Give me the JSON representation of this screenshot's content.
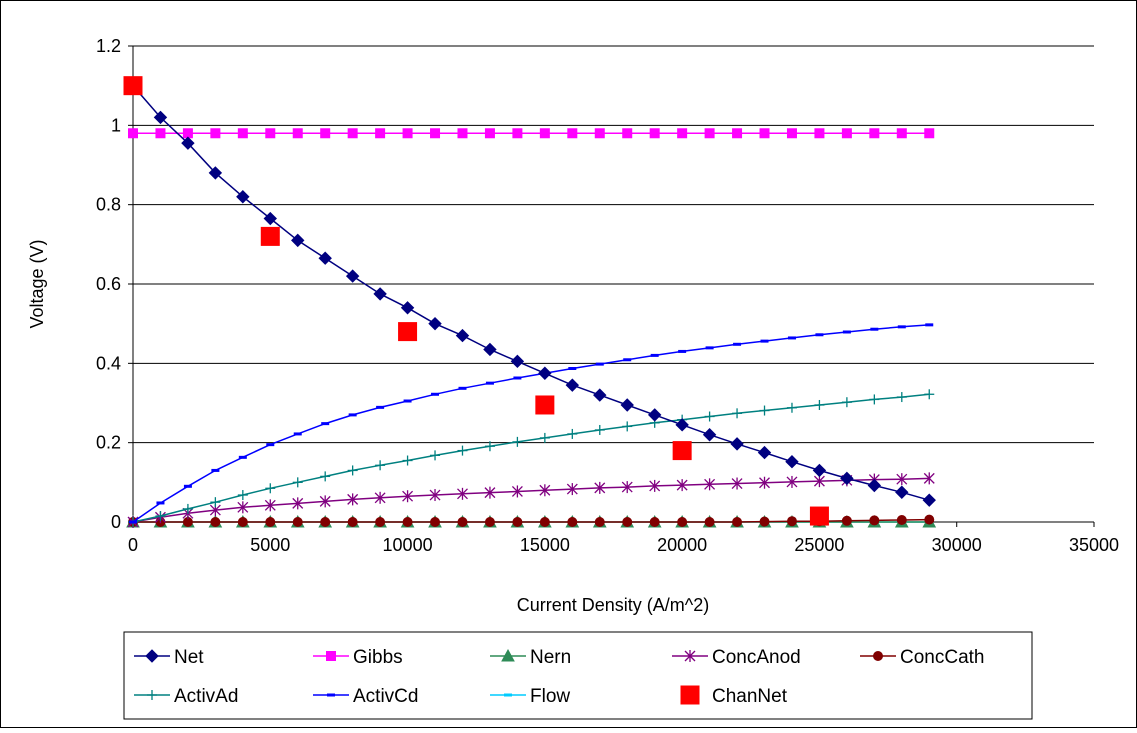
{
  "chart_data": {
    "type": "line",
    "title": "",
    "xlabel": "Current Density (A/m^2)",
    "ylabel": "Voltage (V)",
    "xlim": [
      0,
      35000
    ],
    "ylim": [
      0,
      1.2
    ],
    "x_ticks": [
      "0",
      "5000",
      "10000",
      "15000",
      "20000",
      "25000",
      "30000",
      "35000"
    ],
    "y_ticks": [
      "0",
      "0.2",
      "0.4",
      "0.6",
      "0.8",
      "1",
      "1.2"
    ],
    "grid": "horizontal",
    "legend_position": "bottom",
    "x": [
      0,
      1000,
      2000,
      3000,
      4000,
      5000,
      6000,
      7000,
      8000,
      9000,
      10000,
      11000,
      12000,
      13000,
      14000,
      15000,
      16000,
      17000,
      18000,
      19000,
      20000,
      21000,
      22000,
      23000,
      24000,
      25000,
      26000,
      27000,
      28000,
      29000
    ],
    "series": [
      {
        "name": "Net",
        "color": "#000080",
        "marker": "diamond",
        "values": [
          1.1,
          1.02,
          0.955,
          0.88,
          0.82,
          0.765,
          0.71,
          0.665,
          0.62,
          0.575,
          0.54,
          0.5,
          0.47,
          0.435,
          0.405,
          0.375,
          0.345,
          0.32,
          0.295,
          0.27,
          0.245,
          0.22,
          0.197,
          0.175,
          0.152,
          0.13,
          0.11,
          0.092,
          0.075,
          0.055
        ]
      },
      {
        "name": "Gibbs",
        "color": "#ff00ff",
        "marker": "square",
        "values": [
          0.98,
          0.98,
          0.98,
          0.98,
          0.98,
          0.98,
          0.98,
          0.98,
          0.98,
          0.98,
          0.98,
          0.98,
          0.98,
          0.98,
          0.98,
          0.98,
          0.98,
          0.98,
          0.98,
          0.98,
          0.98,
          0.98,
          0.98,
          0.98,
          0.98,
          0.98,
          0.98,
          0.98,
          0.98,
          0.98
        ]
      },
      {
        "name": "Nern",
        "color": "#2e8b57",
        "marker": "triangle",
        "values": [
          0,
          0,
          0,
          0,
          0,
          0,
          0,
          0,
          0,
          0,
          0,
          0,
          0,
          0,
          0,
          0,
          0,
          0,
          0,
          0,
          0,
          0,
          0,
          0,
          0,
          0,
          0,
          0,
          0,
          0
        ]
      },
      {
        "name": "ConcAnod",
        "color": "#800080",
        "marker": "asterisk",
        "values": [
          0,
          0.012,
          0.022,
          0.03,
          0.037,
          0.042,
          0.047,
          0.052,
          0.057,
          0.061,
          0.065,
          0.068,
          0.071,
          0.074,
          0.077,
          0.08,
          0.083,
          0.086,
          0.088,
          0.091,
          0.093,
          0.095,
          0.097,
          0.099,
          0.101,
          0.103,
          0.105,
          0.107,
          0.108,
          0.11
        ]
      },
      {
        "name": "ConcCath",
        "color": "#800000",
        "marker": "circle",
        "values": [
          0,
          0,
          0,
          0,
          0,
          0,
          0,
          0,
          0,
          0,
          0,
          0,
          0,
          0,
          0,
          0,
          0,
          0,
          0,
          0,
          0,
          0,
          0,
          0.001,
          0.002,
          0.002,
          0.003,
          0.004,
          0.005,
          0.006
        ]
      },
      {
        "name": "ActivAd",
        "color": "#008080",
        "marker": "plus",
        "values": [
          0,
          0.015,
          0.033,
          0.05,
          0.068,
          0.085,
          0.1,
          0.115,
          0.13,
          0.143,
          0.155,
          0.168,
          0.18,
          0.191,
          0.202,
          0.212,
          0.222,
          0.232,
          0.241,
          0.25,
          0.258,
          0.266,
          0.274,
          0.281,
          0.288,
          0.295,
          0.302,
          0.309,
          0.315,
          0.322
        ]
      },
      {
        "name": "ActivCd",
        "color": "#0000ff",
        "marker": "dash",
        "values": [
          0,
          0.048,
          0.09,
          0.13,
          0.163,
          0.195,
          0.222,
          0.248,
          0.27,
          0.289,
          0.305,
          0.322,
          0.337,
          0.35,
          0.363,
          0.375,
          0.387,
          0.398,
          0.409,
          0.42,
          0.43,
          0.439,
          0.448,
          0.456,
          0.464,
          0.472,
          0.479,
          0.486,
          0.492,
          0.497
        ]
      },
      {
        "name": "Flow",
        "color": "#00ccff",
        "marker": "dash",
        "values": [
          0,
          0,
          0,
          0,
          0,
          0,
          0,
          0,
          0,
          0,
          0,
          0,
          0,
          0,
          0,
          0,
          0,
          0,
          0,
          0,
          0,
          0,
          0,
          0,
          0,
          0,
          0,
          0,
          0,
          0
        ]
      }
    ],
    "scatter_series": [
      {
        "name": "ChanNet",
        "color": "#ff0000",
        "marker": "big-square",
        "x": [
          0,
          5000,
          10000,
          15000,
          20000,
          25000
        ],
        "values": [
          1.1,
          0.72,
          0.48,
          0.295,
          0.18,
          0.015
        ]
      }
    ]
  }
}
